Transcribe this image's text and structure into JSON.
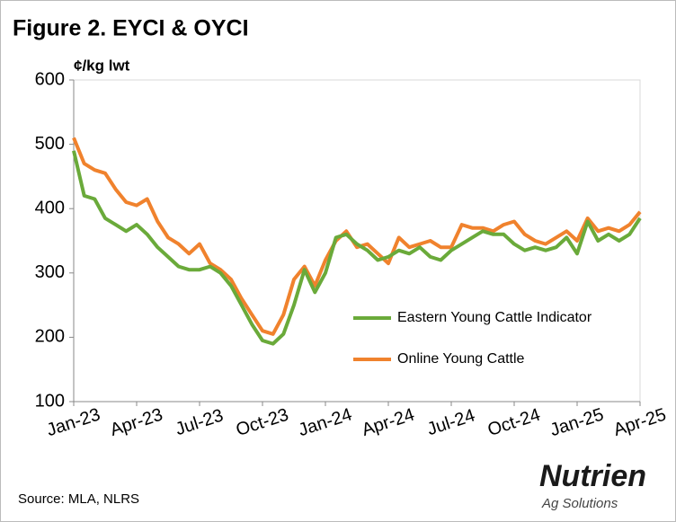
{
  "chart_data": {
    "type": "line",
    "title": "Figure 2. EYCI & OYCI",
    "y_label": "¢/kg lwt",
    "source": "Source:  MLA, NLRS",
    "categories": [
      "Jan-23",
      null,
      null,
      null,
      null,
      null,
      "Apr-23",
      null,
      null,
      null,
      null,
      null,
      "Jul-23",
      null,
      null,
      null,
      null,
      null,
      "Oct-23",
      null,
      null,
      null,
      null,
      null,
      "Jan-24",
      null,
      null,
      null,
      null,
      null,
      "Apr-24",
      null,
      null,
      null,
      null,
      null,
      "Jul-24",
      null,
      null,
      null,
      null,
      null,
      "Oct-24",
      null,
      null,
      null,
      null,
      null,
      "Jan-25",
      null,
      null,
      null,
      null,
      null,
      "Apr-25"
    ],
    "series": [
      {
        "name": "Eastern Young Cattle Indicator",
        "color": "#6aaa3a",
        "values": [
          490,
          420,
          415,
          385,
          375,
          365,
          375,
          360,
          340,
          325,
          310,
          305,
          305,
          310,
          300,
          280,
          250,
          220,
          195,
          190,
          205,
          250,
          305,
          270,
          300,
          355,
          360,
          345,
          335,
          320,
          325,
          335,
          330,
          340,
          325,
          320,
          335,
          345,
          355,
          365,
          360,
          360,
          345,
          335,
          340,
          335,
          340,
          355,
          330,
          380,
          350,
          360,
          350,
          360,
          385
        ]
      },
      {
        "name": "Online Young Cattle",
        "color": "#f0822d",
        "values": [
          510,
          470,
          460,
          455,
          430,
          410,
          405,
          415,
          380,
          355,
          345,
          330,
          345,
          315,
          305,
          290,
          260,
          235,
          210,
          205,
          235,
          290,
          310,
          280,
          320,
          350,
          365,
          340,
          345,
          330,
          315,
          355,
          340,
          345,
          350,
          340,
          340,
          375,
          370,
          370,
          365,
          375,
          380,
          360,
          350,
          345,
          355,
          365,
          350,
          385,
          365,
          370,
          365,
          375,
          395
        ]
      }
    ],
    "ylim": [
      100,
      600
    ],
    "yticks": [
      100,
      200,
      300,
      400,
      500,
      600
    ],
    "grid": false,
    "legend": "right"
  },
  "logo": {
    "name": "Nutrien",
    "tagline": "Ag Solutions"
  }
}
